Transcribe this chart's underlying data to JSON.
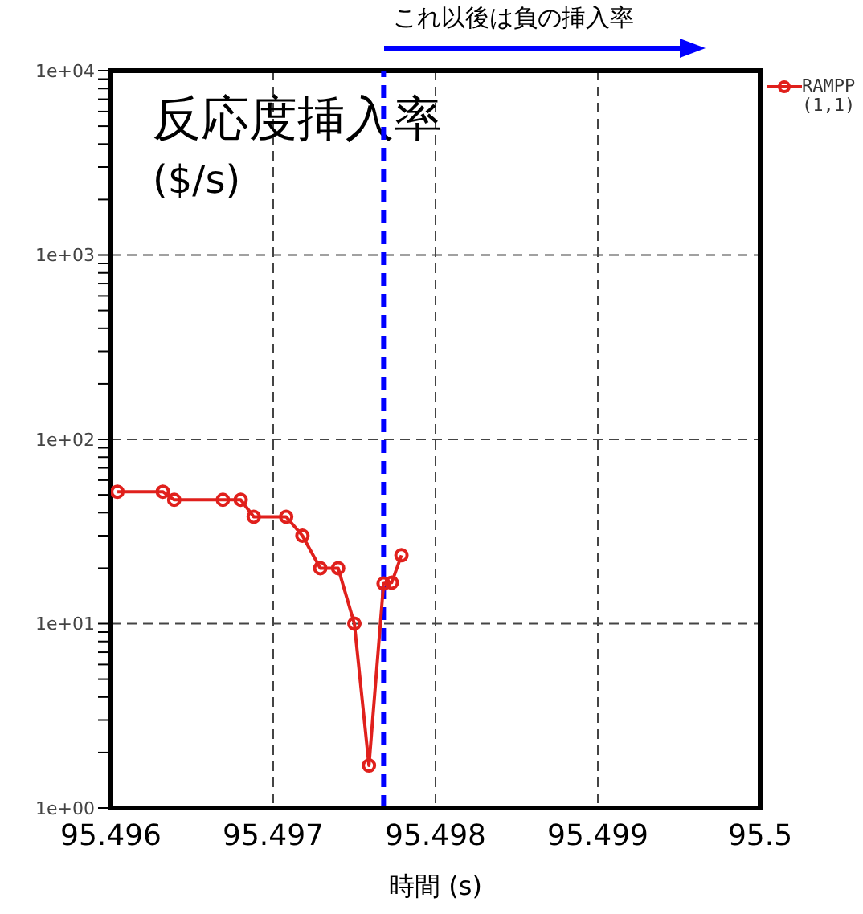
{
  "chart_data": {
    "type": "line",
    "xlabel": "時間 (s)",
    "ylabel": "反応度挿入率 ($/s)",
    "annotations": [
      "これ以後は負の挿入率"
    ],
    "x": [
      95.49604,
      95.49632,
      95.49639,
      95.49669,
      95.4968,
      95.49688,
      95.49708,
      95.49718,
      95.49729,
      95.4974,
      95.4975,
      95.49759,
      95.49768,
      95.49773,
      95.49779
    ],
    "series": [
      {
        "name": "RAMPP (1,1)",
        "color": "#e0201c",
        "values": [
          52,
          52,
          47,
          47,
          47,
          38,
          38,
          30,
          20,
          20,
          10,
          1.7,
          16.5,
          16.7,
          23.5
        ]
      }
    ],
    "xlim": [
      95.496,
      95.5
    ],
    "xticks": [
      95.496,
      95.497,
      95.498,
      95.499,
      95.5
    ],
    "ylim": [
      1,
      10000
    ],
    "log": true,
    "yticks": [
      {
        "value": 1,
        "label": "1e+00"
      },
      {
        "value": 2,
        "label": null
      },
      {
        "value": 3,
        "label": null
      },
      {
        "value": 4,
        "label": null
      },
      {
        "value": 5,
        "label": null
      },
      {
        "value": 6,
        "label": null
      },
      {
        "value": 7,
        "label": null
      },
      {
        "value": 8,
        "label": null
      },
      {
        "value": 9,
        "label": null
      },
      {
        "value": 10,
        "label": "1e+01"
      },
      {
        "value": 20,
        "label": null
      },
      {
        "value": 30,
        "label": null
      },
      {
        "value": 40,
        "label": null
      },
      {
        "value": 50,
        "label": null
      },
      {
        "value": 60,
        "label": null
      },
      {
        "value": 70,
        "label": null
      },
      {
        "value": 80,
        "label": null
      },
      {
        "value": 90,
        "label": null
      },
      {
        "value": 100,
        "label": "1e+02"
      },
      {
        "value": 200,
        "label": null
      },
      {
        "value": 300,
        "label": null
      },
      {
        "value": 400,
        "label": null
      },
      {
        "value": 500,
        "label": null
      },
      {
        "value": 600,
        "label": null
      },
      {
        "value": 700,
        "label": null
      },
      {
        "value": 800,
        "label": null
      },
      {
        "value": 900,
        "label": null
      },
      {
        "value": 1000,
        "label": "1e+03"
      },
      {
        "value": 2000,
        "label": null
      },
      {
        "value": 3000,
        "label": null
      },
      {
        "value": 4000,
        "label": null
      },
      {
        "value": 5000,
        "label": null
      },
      {
        "value": 6000,
        "label": null
      },
      {
        "value": 7000,
        "label": null
      },
      {
        "value": 8000,
        "label": null
      },
      {
        "value": 9000,
        "label": null
      },
      {
        "value": 10000,
        "label": "1e+04"
      }
    ],
    "ref_lines": [
      {
        "axis": "x",
        "value": 95.49768,
        "color": "#0000ff",
        "line_style": "dashed"
      }
    ],
    "grid": true,
    "legend": "top right",
    "marker": "circle",
    "line_style": "solid"
  }
}
